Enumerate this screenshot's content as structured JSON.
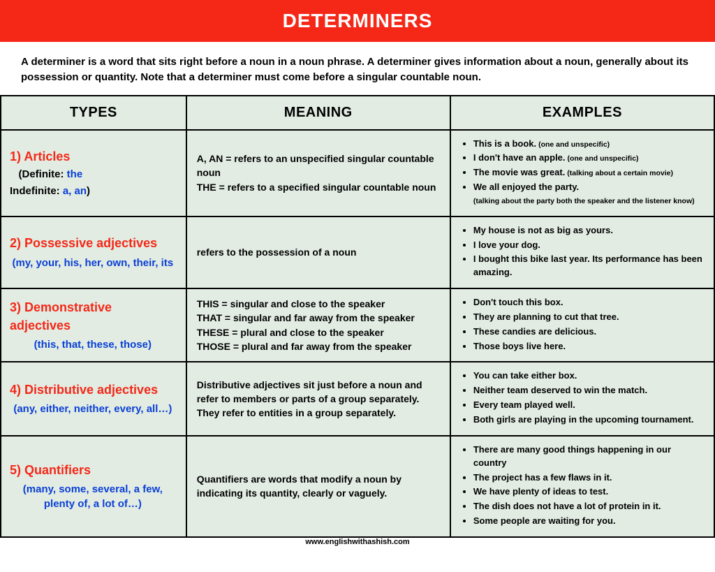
{
  "header": {
    "title": "DETERMINERS",
    "bg": "#f52818",
    "fg": "#ffffff"
  },
  "intro": "A determiner is a word that sits right before a noun in a noun phrase. A determiner gives information about a noun, generally about its possession or quantity. Note that a determiner must come before a singular countable noun.",
  "columns": [
    "TYPES",
    "MEANING",
    "EXAMPLES"
  ],
  "colors": {
    "red": "#f52818",
    "blue": "#0a3fd6",
    "cell_bg": "#e2ece3",
    "border": "#000000"
  },
  "rows": [
    {
      "num": "1)",
      "title": "Articles",
      "sub_prefix_1": "(Definite: ",
      "sub_blue_1": "the",
      "sub_prefix_2": "Indefinite: ",
      "sub_blue_2": "a, an",
      "sub_suffix_2": ")",
      "meaning_lines": [
        {
          "kw": "A, AN = ",
          "txt": "refers to an unspecified singular countable noun"
        },
        {
          "kw": "THE = ",
          "txt": "refers to a specified singular countable noun"
        }
      ],
      "examples": [
        {
          "pre": "This is ",
          "b": "a book.",
          "post": "",
          "note": " (one and unspecific)"
        },
        {
          "pre": "I don't have ",
          "b": "an apple.",
          "post": "",
          "note": " (one and unspecific)"
        },
        {
          "pre": "",
          "b": "The movie",
          "post": " was great.",
          "note": " (talking about a certain movie)"
        },
        {
          "pre": "We all enjoyed ",
          "b": "the party.",
          "post": "",
          "note_block": "(talking about the party both the speaker and the listener know)"
        }
      ]
    },
    {
      "num": "2)",
      "title": "Possessive adjectives",
      "sub_blue_centered": "(my, your, his, her, own, their, its",
      "meaning_plain": "refers to the possession of a noun",
      "examples": [
        {
          "pre": "",
          "b": "My house",
          "post": " is not as big as yours."
        },
        {
          "pre": "I love ",
          "b": "your dog.",
          "post": ""
        },
        {
          "pre": "I bought this bike last year. ",
          "b": "Its performance",
          "post": " has been amazing."
        }
      ]
    },
    {
      "num": "3)",
      "title": "Demonstrative adjectives",
      "sub_blue_centered": "(this, that, these, those)",
      "meaning_lines": [
        {
          "kw": "THIS",
          "txt": " = singular and close to the speaker"
        },
        {
          "kw": "THAT",
          "txt": " = singular and far away from the speaker"
        },
        {
          "kw": "THESE",
          "txt": " = plural and close to the speaker"
        },
        {
          "kw": "THOSE",
          "txt": " = plural and far away from the speaker"
        }
      ],
      "examples": [
        {
          "pre": "Don't touch ",
          "b": "this box.",
          "post": ""
        },
        {
          "pre": "They are planning to cut ",
          "b": "that tree.",
          "post": ""
        },
        {
          "pre": "",
          "b": "These candies",
          "post": " are delicious."
        },
        {
          "pre": "",
          "b": "Those boys",
          "post": " live here."
        }
      ]
    },
    {
      "num": "4)",
      "title": "Distributive adjectives",
      "sub_blue_centered": "(any, either, neither, every, all…)",
      "meaning_plain": "Distributive adjectives sit just before a noun and refer to members or parts of a group separately. They refer to entities in a group separately.",
      "examples": [
        {
          "pre": "You can take ",
          "b": "either box.",
          "post": ""
        },
        {
          "pre": "",
          "b": "Neither team",
          "post": " deserved to win the match."
        },
        {
          "pre": "",
          "b": "Every team",
          "post": " played well."
        },
        {
          "pre": "",
          "b": "Both girls",
          "post": " are playing in the upcoming tournament."
        }
      ]
    },
    {
      "num": "5)",
      "title": "Quantifiers",
      "sub_blue_centered": "(many, some, several, a few, plenty of, a lot of…)",
      "meaning_plain": "Quantifiers are words that modify a noun by indicating its quantity, clearly or vaguely.",
      "examples": [
        {
          "pre": "There are ",
          "b": "many good things",
          "post": " happening in our country"
        },
        {
          "pre": "The project has ",
          "b": "a few flaws",
          "post": " in it."
        },
        {
          "pre": "We have ",
          "b": "plenty of ideas",
          "post": " to test."
        },
        {
          "pre": "The dish does not have ",
          "b": "a lot of protein",
          "post": " in it."
        },
        {
          "pre": "",
          "b": "Some people",
          "post": " are waiting for you."
        }
      ]
    }
  ],
  "footer": "www.englishwithashish.com"
}
